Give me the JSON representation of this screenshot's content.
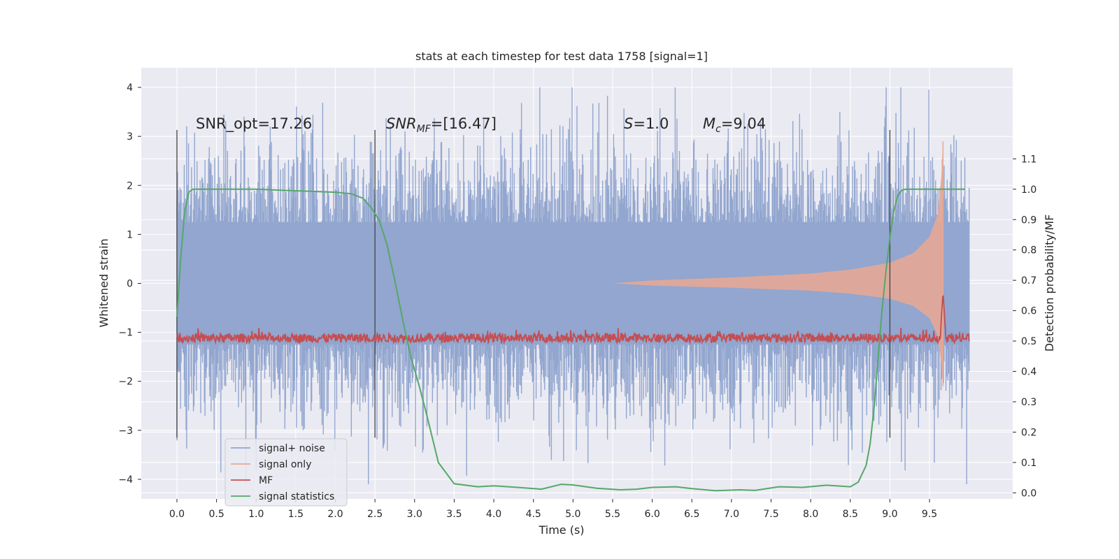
{
  "chart_data": {
    "type": "line",
    "title": "stats at each timestep for test data 1758 [signal=1]",
    "xlabel": "Time (s)",
    "ylabel": "Whitened strain",
    "ylabel_right": "Detection probability/MF",
    "xlim": [
      -0.45,
      10.55
    ],
    "ylim": [
      -4.4,
      4.4
    ],
    "ylim_right": [
      -0.02,
      1.4
    ],
    "x_ticks": [
      "0.0",
      "0.5",
      "1.0",
      "1.5",
      "2.0",
      "2.5",
      "3.0",
      "3.5",
      "4.0",
      "4.5",
      "5.0",
      "5.5",
      "6.0",
      "6.5",
      "7.0",
      "7.5",
      "8.0",
      "8.5",
      "9.0",
      "9.5"
    ],
    "y_ticks": [
      "4",
      "3",
      "2",
      "1",
      "0",
      "−1",
      "−2",
      "−3",
      "−4"
    ],
    "y_ticks_right": [
      "1.1",
      "1.0",
      "0.9",
      "0.8",
      "0.7",
      "0.6",
      "0.5",
      "0.4",
      "0.3",
      "0.2",
      "0.1",
      "0.0"
    ],
    "grid": true,
    "legend_position": "lower-left",
    "annotations": {
      "snr_opt": "SNR_opt=17.26",
      "snr_mf_base": "SNR",
      "snr_mf_sub": "MF",
      "snr_mf_rest": "=[16.47]",
      "s_var": "S",
      "s_rest": "=1.0",
      "mc_var": "M",
      "mc_sub": "c",
      "mc_rest": "=9.04"
    },
    "vlines": [
      0.0,
      2.5,
      9.0
    ],
    "series": [
      {
        "name": "signal+ noise",
        "color": "#92a6cf",
        "axis": "left",
        "description_values": {
          "amplitude_std": 1.0,
          "t_start": 0.0,
          "t_end": 10.0
        }
      },
      {
        "name": "signal only",
        "color": "#e6a895",
        "axis": "left",
        "envelope": {
          "t": [
            5.5,
            6.0,
            7.0,
            8.0,
            8.5,
            9.0,
            9.3,
            9.5,
            9.6,
            9.65,
            9.67
          ],
          "amp": [
            0.0,
            0.06,
            0.12,
            0.2,
            0.28,
            0.42,
            0.62,
            0.95,
            1.4,
            2.2,
            2.9
          ]
        }
      },
      {
        "name": "MF",
        "color": "#c44e52",
        "axis": "right",
        "base": 0.51,
        "peak": {
          "x": 9.67,
          "y": 0.66
        }
      },
      {
        "name": "signal statistics",
        "color": "#55a868",
        "axis": "right",
        "x": [
          0.0,
          0.05,
          0.1,
          0.15,
          0.2,
          0.3,
          0.5,
          1.0,
          1.5,
          2.0,
          2.2,
          2.35,
          2.45,
          2.55,
          2.65,
          2.75,
          2.85,
          2.95,
          3.05,
          3.15,
          3.3,
          3.5,
          3.8,
          4.0,
          4.3,
          4.6,
          4.85,
          5.0,
          5.3,
          5.6,
          5.8,
          6.0,
          6.3,
          6.5,
          6.8,
          7.1,
          7.3,
          7.6,
          7.9,
          8.2,
          8.5,
          8.6,
          8.7,
          8.75,
          8.8,
          8.85,
          8.9,
          8.95,
          9.0,
          9.05,
          9.1,
          9.15,
          9.2,
          9.3,
          9.5,
          9.7,
          9.95
        ],
        "y": [
          0.58,
          0.78,
          0.93,
          0.99,
          1.0,
          1.0,
          1.0,
          1.0,
          0.995,
          0.99,
          0.985,
          0.97,
          0.94,
          0.9,
          0.82,
          0.7,
          0.57,
          0.45,
          0.36,
          0.26,
          0.1,
          0.03,
          0.02,
          0.023,
          0.018,
          0.012,
          0.028,
          0.026,
          0.015,
          0.01,
          0.012,
          0.018,
          0.02,
          0.014,
          0.007,
          0.01,
          0.008,
          0.02,
          0.018,
          0.025,
          0.02,
          0.035,
          0.09,
          0.16,
          0.28,
          0.44,
          0.6,
          0.73,
          0.84,
          0.93,
          0.98,
          0.997,
          1.0,
          1.0,
          1.0,
          1.0,
          1.0
        ]
      }
    ]
  }
}
